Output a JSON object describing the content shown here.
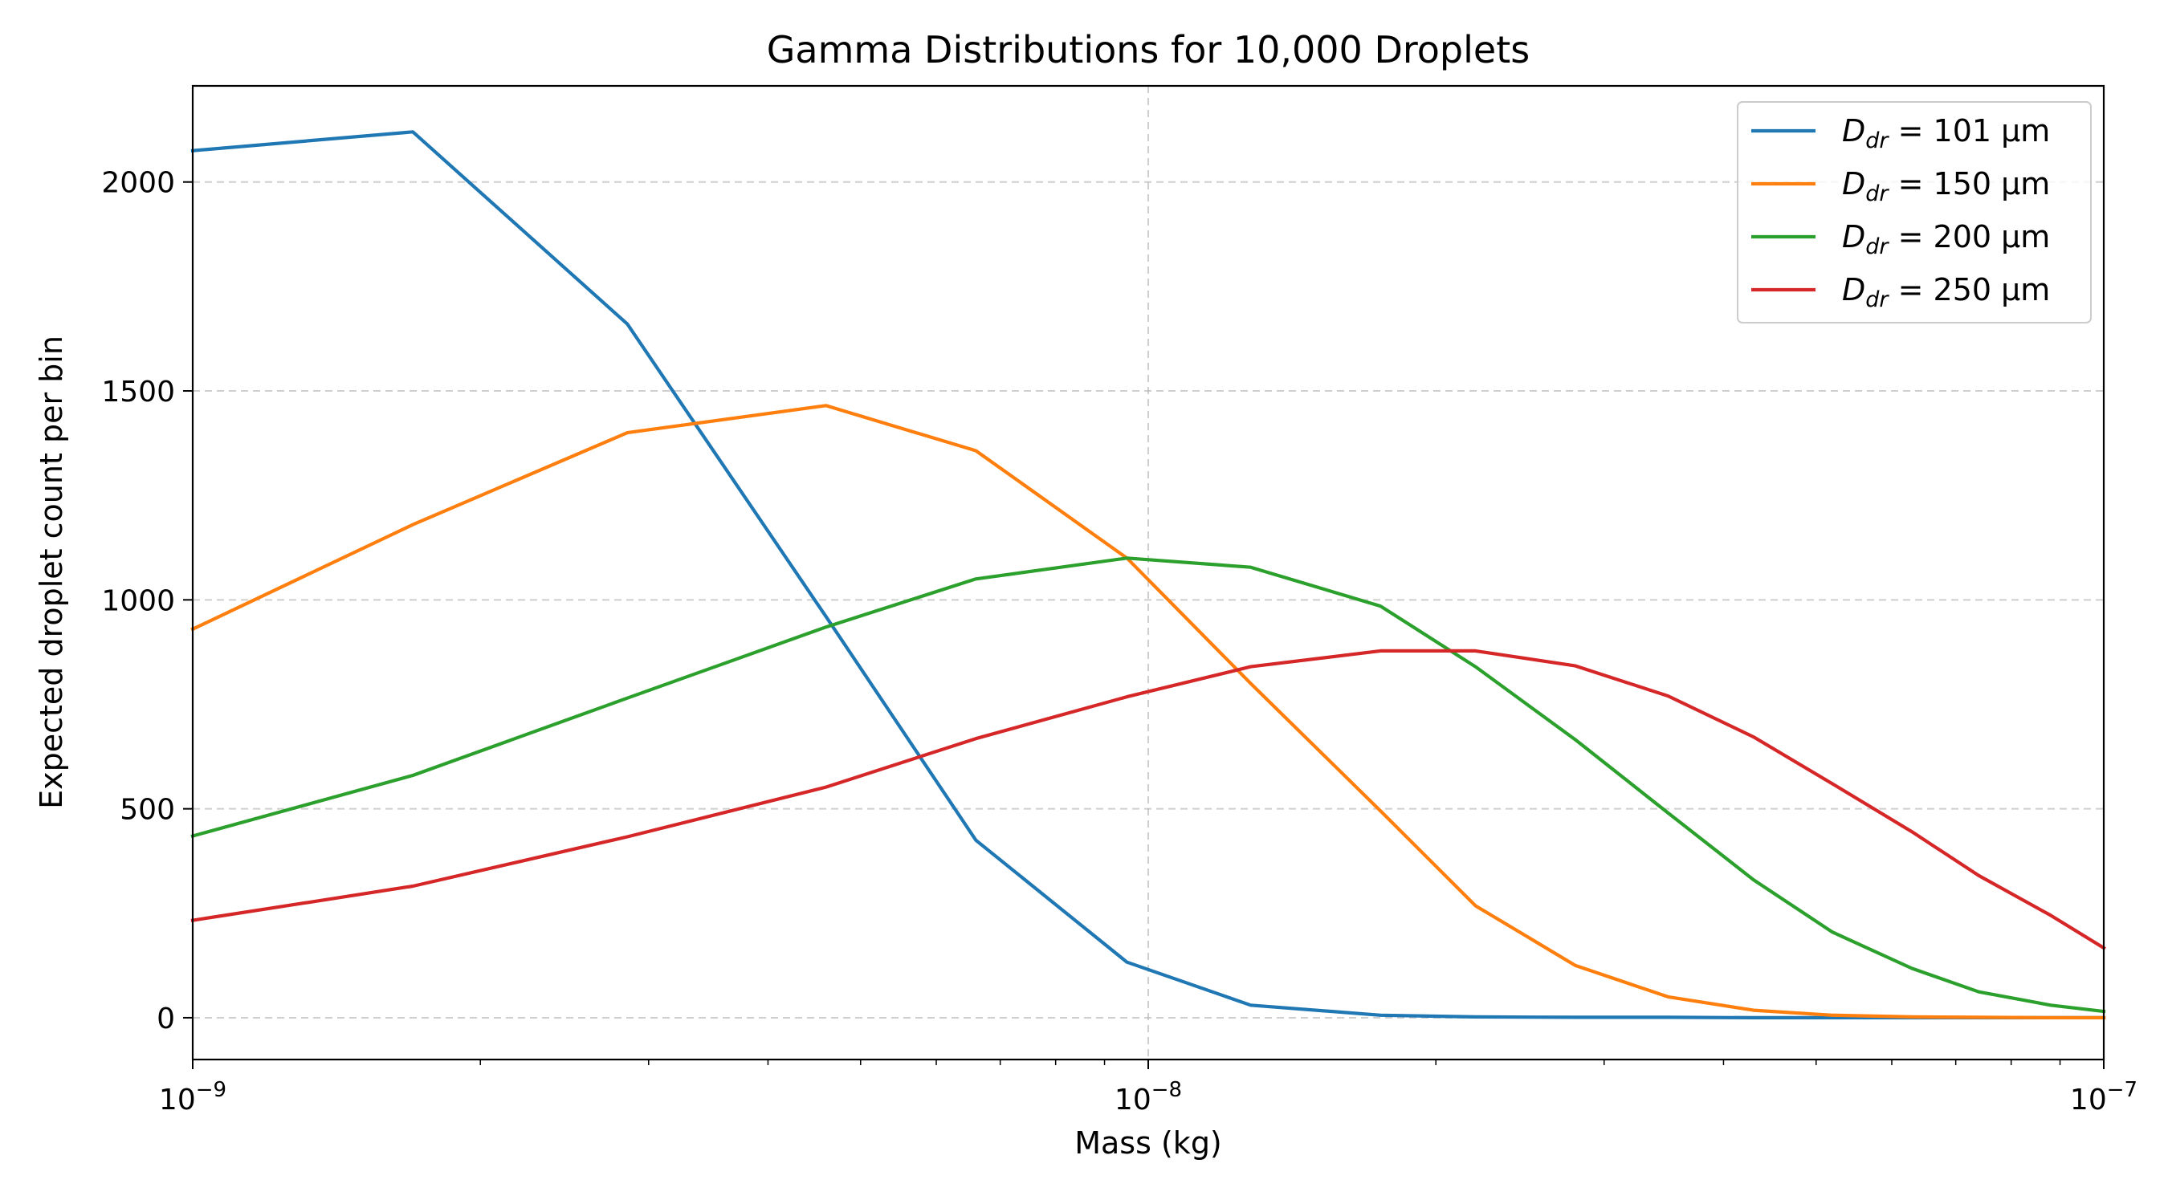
{
  "chart_data": {
    "type": "line",
    "title": "Gamma Distributions for 10,000 Droplets",
    "xlabel": "Mass (kg)",
    "ylabel": "Expected droplet count per bin",
    "xscale": "log",
    "xlim": [
      1e-09,
      1e-07
    ],
    "ylim": [
      -100,
      2230
    ],
    "x_ticks": [
      {
        "value": 1e-09,
        "base": "10",
        "exp": "−9"
      },
      {
        "value": 1e-08,
        "base": "10",
        "exp": "−8"
      },
      {
        "value": 1e-07,
        "base": "10",
        "exp": "−7"
      }
    ],
    "y_ticks": [
      0,
      500,
      1000,
      1500,
      2000
    ],
    "grid": true,
    "legend_position": "top-right",
    "x": [
      1e-09,
      1.7e-09,
      2.85e-09,
      4.6e-09,
      6.6e-09,
      9.5e-09,
      1.28e-08,
      1.75e-08,
      2.2e-08,
      2.8e-08,
      3.5e-08,
      4.3e-08,
      5.2e-08,
      6.3e-08,
      7.4e-08,
      8.8e-08,
      1e-07
    ],
    "series": [
      {
        "name_main": "D",
        "name_sub": "dr",
        "name_rest": " = 101 µm",
        "color": "#1f77b4",
        "values": [
          2075,
          2120,
          1660,
          960,
          425,
          133,
          30,
          6,
          2,
          1,
          1,
          0,
          0,
          0,
          0,
          0,
          0
        ]
      },
      {
        "name_main": "D",
        "name_sub": "dr",
        "name_rest": " = 150 µm",
        "color": "#ff7f0e",
        "values": [
          930,
          1180,
          1400,
          1465,
          1357,
          1100,
          800,
          495,
          268,
          125,
          50,
          18,
          6,
          2,
          1,
          0,
          0
        ]
      },
      {
        "name_main": "D",
        "name_sub": "dr",
        "name_rest": " = 200 µm",
        "color": "#2ca02c",
        "values": [
          435,
          580,
          765,
          935,
          1050,
          1100,
          1078,
          985,
          840,
          665,
          490,
          330,
          205,
          118,
          62,
          30,
          15
        ]
      },
      {
        "name_main": "D",
        "name_sub": "dr",
        "name_rest": " = 250 µm",
        "color": "#d62728",
        "values": [
          233,
          315,
          433,
          552,
          668,
          768,
          840,
          878,
          878,
          842,
          770,
          672,
          560,
          445,
          340,
          245,
          167
        ]
      }
    ]
  }
}
